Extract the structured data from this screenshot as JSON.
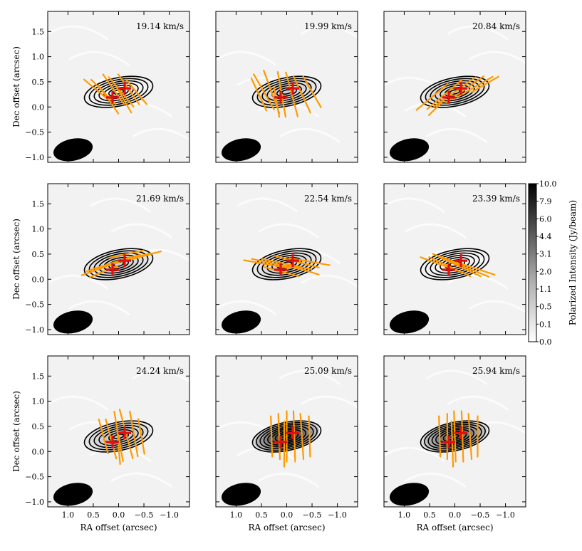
{
  "chart_data": {
    "type": "polarization-map-grid",
    "panels": [
      {
        "velocity_label": "19.14 km/s",
        "vectors": [
          [
            0.1,
            0.35,
            -55,
            0.36
          ],
          [
            -0.05,
            0.3,
            -50,
            0.38
          ],
          [
            -0.2,
            0.35,
            -55,
            0.36
          ],
          [
            0.3,
            0.3,
            -45,
            0.34
          ],
          [
            0.45,
            0.35,
            -40,
            0.3
          ],
          [
            -0.35,
            0.3,
            -50,
            0.32
          ],
          [
            0.2,
            0.15,
            -55,
            0.34
          ],
          [
            -0.1,
            0.15,
            -60,
            0.3
          ]
        ],
        "contour_levels": 7,
        "intensity": 0.05
      },
      {
        "velocity_label": "19.99 km/s",
        "vectors": [
          [
            0.1,
            0.25,
            -80,
            0.45
          ],
          [
            0.3,
            0.3,
            -70,
            0.45
          ],
          [
            0.45,
            0.3,
            -60,
            0.4
          ],
          [
            -0.1,
            0.25,
            -75,
            0.45
          ],
          [
            -0.3,
            0.25,
            -65,
            0.4
          ],
          [
            -0.5,
            0.3,
            -60,
            0.35
          ],
          [
            0.55,
            0.25,
            -65,
            0.35
          ],
          [
            0.2,
            0.1,
            -80,
            0.3
          ]
        ],
        "contour_levels": 7,
        "intensity": 0.15
      },
      {
        "velocity_label": "20.84 km/s",
        "vectors": [
          [
            0.2,
            0.25,
            40,
            0.45
          ],
          [
            0.0,
            0.3,
            35,
            0.5
          ],
          [
            -0.2,
            0.35,
            35,
            0.45
          ],
          [
            -0.4,
            0.4,
            30,
            0.4
          ],
          [
            0.45,
            0.2,
            40,
            0.4
          ],
          [
            0.3,
            0.05,
            45,
            0.3
          ],
          [
            -0.6,
            0.45,
            30,
            0.3
          ]
        ],
        "contour_levels": 7,
        "intensity": 0.15
      },
      {
        "velocity_label": "21.69 km/s",
        "vectors": [
          [
            0.4,
            0.2,
            20,
            0.35
          ],
          [
            0.2,
            0.3,
            18,
            0.45
          ],
          [
            0.0,
            0.35,
            18,
            0.45
          ],
          [
            -0.2,
            0.4,
            15,
            0.45
          ],
          [
            -0.45,
            0.45,
            15,
            0.4
          ],
          [
            0.3,
            0.15,
            22,
            0.3
          ],
          [
            -0.15,
            0.5,
            12,
            0.35
          ]
        ],
        "contour_levels": 7,
        "intensity": 0.15
      },
      {
        "velocity_label": "22.54 km/s",
        "vectors": [
          [
            0.4,
            0.3,
            -10,
            0.45
          ],
          [
            0.2,
            0.3,
            -12,
            0.5
          ],
          [
            0.0,
            0.3,
            -12,
            0.5
          ],
          [
            -0.2,
            0.35,
            -15,
            0.45
          ],
          [
            -0.45,
            0.35,
            -10,
            0.4
          ],
          [
            0.1,
            0.15,
            -15,
            0.35
          ],
          [
            -0.3,
            0.2,
            -18,
            0.35
          ]
        ],
        "contour_levels": 7,
        "intensity": 0.15
      },
      {
        "velocity_label": "23.39 km/s",
        "vectors": [
          [
            0.3,
            0.3,
            -20,
            0.4
          ],
          [
            0.1,
            0.25,
            -25,
            0.45
          ],
          [
            -0.1,
            0.25,
            -25,
            0.45
          ],
          [
            -0.3,
            0.2,
            -22,
            0.4
          ],
          [
            -0.45,
            0.2,
            -18,
            0.35
          ],
          [
            0.15,
            0.4,
            -20,
            0.3
          ]
        ],
        "contour_levels": 7,
        "intensity": 0.1
      },
      {
        "velocity_label": "24.24 km/s",
        "vectors": [
          [
            0.15,
            0.25,
            -75,
            0.4
          ],
          [
            0.0,
            0.3,
            -80,
            0.5
          ],
          [
            -0.15,
            0.35,
            -75,
            0.5
          ],
          [
            -0.3,
            0.35,
            -80,
            0.45
          ],
          [
            0.3,
            0.3,
            -75,
            0.35
          ],
          [
            -0.45,
            0.3,
            -80,
            0.35
          ],
          [
            0.0,
            0.1,
            -85,
            0.35
          ]
        ],
        "contour_levels": 7,
        "intensity": 0.2
      },
      {
        "velocity_label": "25.09 km/s",
        "vectors": [
          [
            0.3,
            0.3,
            -88,
            0.4
          ],
          [
            0.15,
            0.3,
            -88,
            0.45
          ],
          [
            0.0,
            0.3,
            -90,
            0.5
          ],
          [
            -0.15,
            0.3,
            -88,
            0.5
          ],
          [
            -0.3,
            0.3,
            -86,
            0.45
          ],
          [
            -0.45,
            0.3,
            -88,
            0.4
          ],
          [
            0.05,
            0.15,
            -90,
            0.45
          ]
        ],
        "contour_levels": 9,
        "intensity": 0.75
      },
      {
        "velocity_label": "25.94 km/s",
        "vectors": [
          [
            0.3,
            0.3,
            -88,
            0.4
          ],
          [
            0.15,
            0.3,
            -90,
            0.45
          ],
          [
            0.0,
            0.3,
            -88,
            0.5
          ],
          [
            -0.15,
            0.3,
            -88,
            0.5
          ],
          [
            -0.3,
            0.3,
            -86,
            0.45
          ],
          [
            -0.45,
            0.3,
            -90,
            0.4
          ],
          [
            0.05,
            0.15,
            -88,
            0.45
          ]
        ],
        "contour_levels": 9,
        "intensity": 0.6
      }
    ],
    "sources": [
      [
        0.12,
        0.19
      ],
      [
        -0.12,
        0.37
      ]
    ],
    "beam": {
      "ra": 0.9,
      "dec": -0.85,
      "major_arcsec": 0.75,
      "minor_arcsec": 0.3,
      "pa_deg": 12
    },
    "disk": {
      "ra": 0.0,
      "dec": 0.3,
      "major_arcsec": 1.1,
      "minor_arcsec": 0.35,
      "pa_deg": 12
    },
    "xlabel": "RA offset (arcsec)",
    "ylabel": "Dec offset (arcsec)",
    "xlim": [
      1.4,
      -1.4
    ],
    "ylim": [
      -1.1,
      1.9
    ],
    "xticks": [
      1.0,
      0.5,
      0.0,
      -0.5,
      -1.0
    ],
    "xtick_labels": [
      "1.0",
      "0.5",
      "0.0",
      "−0.5",
      "−1.0"
    ],
    "yticks": [
      1.5,
      1.0,
      0.5,
      0.0,
      -0.5,
      -1.0
    ],
    "ytick_labels": [
      "1.5",
      "1.0",
      "0.5",
      "0.0",
      "−0.5",
      "−1.0"
    ],
    "colorbar": {
      "label": "Polarized Intensity (Jy/beam)",
      "tick_labels": [
        "10.0",
        "7.9",
        "6.0",
        "4.4",
        "3.1",
        "2.0",
        "1.1",
        "0.5",
        "0.1",
        "0.0"
      ]
    },
    "colors": {
      "vector": "#ff9a00",
      "source": "#e01010",
      "contour": "#000000",
      "background": "#f2f2f2"
    }
  }
}
